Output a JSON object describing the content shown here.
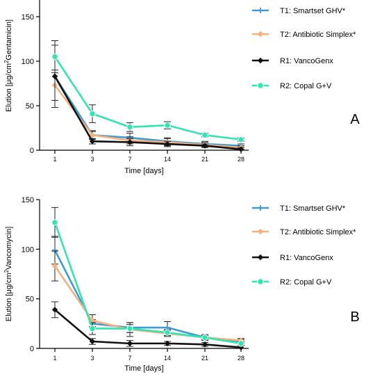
{
  "chart_data": [
    {
      "type": "line",
      "panel_label": "A",
      "x": [
        "1",
        "3",
        "7",
        "14",
        "21",
        "28"
      ],
      "xlabel": "Time [days]",
      "ylabel": "Elution [μg/cm² Gentamicin]",
      "ylabel_parts": {
        "pre": "Elution [μg/cm",
        "sup": "2",
        "post": "Gentamicin]"
      },
      "ylim": [
        0,
        190
      ],
      "yticks": [
        "0",
        "50",
        "100",
        "150"
      ],
      "legend_position": "right",
      "grid": false,
      "series": [
        {
          "name": "T1: Smartset GHV*",
          "color": "#3f9ad6",
          "marker": "cross",
          "values": [
            83,
            17,
            14,
            10,
            7,
            5
          ],
          "err": [
            0,
            4,
            5,
            4,
            3,
            2
          ]
        },
        {
          "name": "T2: Antibiotic Simplex*",
          "color": "#f5b07c",
          "marker": "diamond",
          "values": [
            73,
            17,
            11,
            9,
            6,
            3
          ],
          "err": [
            17,
            5,
            4,
            4,
            3,
            2
          ]
        },
        {
          "name": "R1: VancoGenx",
          "color": "#111111",
          "marker": "diamond",
          "values": [
            83,
            10,
            9,
            7,
            5,
            1
          ],
          "err": [
            35,
            3,
            4,
            3,
            2,
            2
          ]
        },
        {
          "name": "R2: Copal G+V",
          "color": "#2ee6b0",
          "marker": "circle",
          "values": [
            105,
            41,
            26,
            28,
            17,
            12
          ],
          "err": [
            18,
            10,
            5,
            4,
            2,
            2
          ]
        }
      ]
    },
    {
      "type": "line",
      "panel_label": "B",
      "x": [
        "1",
        "3",
        "7",
        "14",
        "21",
        "28"
      ],
      "xlabel": "Time [days]",
      "ylabel": "Elution [μg/cm² Vancomycin]",
      "ylabel_parts": {
        "pre": "Elution [μg/cm",
        "sup": "2",
        "post": "Vancomycin]"
      },
      "ylim": [
        0,
        150
      ],
      "yticks": [
        "0",
        "50",
        "100",
        "150"
      ],
      "legend_position": "right",
      "grid": false,
      "series": [
        {
          "name": "T1: Smartset GHV*",
          "color": "#3f9ad6",
          "marker": "cross",
          "values": [
            99,
            25,
            21,
            21,
            11,
            7
          ],
          "err": [
            14,
            4,
            5,
            6,
            2,
            2
          ]
        },
        {
          "name": "T2: Antibiotic Simplex*",
          "color": "#f5b07c",
          "marker": "diamond",
          "values": [
            83,
            28,
            19,
            15,
            11,
            8
          ],
          "err": [
            15,
            6,
            7,
            3,
            3,
            2
          ]
        },
        {
          "name": "R1: VancoGenx",
          "color": "#111111",
          "marker": "diamond",
          "values": [
            39,
            7,
            5,
            5,
            4,
            1
          ],
          "err": [
            8,
            3,
            3,
            2,
            2,
            2
          ]
        },
        {
          "name": "R2: Copal G+V",
          "color": "#2ee6b0",
          "marker": "circle",
          "values": [
            127,
            20,
            20,
            16,
            11,
            5
          ],
          "err": [
            15,
            6,
            4,
            3,
            2,
            2
          ]
        }
      ]
    }
  ]
}
